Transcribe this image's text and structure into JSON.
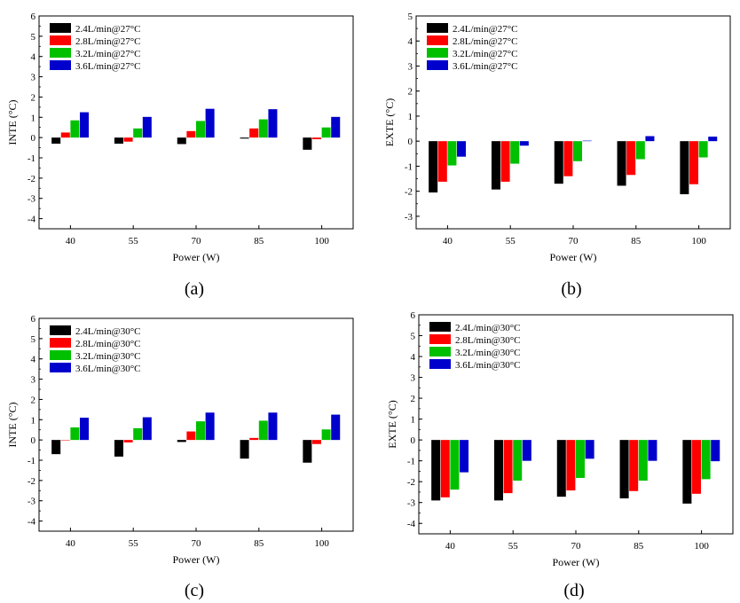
{
  "colors": [
    "#000000",
    "#ff0000",
    "#00c000",
    "#0000cc"
  ],
  "chart_data": [
    {
      "type": "bar",
      "caption": "(a)",
      "categories": [
        "40",
        "55",
        "70",
        "85",
        "100"
      ],
      "xlabel": "Power (W)",
      "ylabel": "INTE (°C)",
      "ylim": [
        -4.5,
        6
      ],
      "yticks": [
        -4,
        -3,
        -2,
        -1,
        0,
        1,
        2,
        3,
        4,
        5,
        6
      ],
      "legend_position": "top-left",
      "grid": false,
      "series": [
        {
          "name": "2.4L/min@27°C",
          "values": [
            -0.3,
            -0.3,
            -0.32,
            -0.05,
            -0.6
          ]
        },
        {
          "name": "2.8L/min@27°C",
          "values": [
            0.25,
            -0.2,
            0.32,
            0.45,
            -0.08
          ]
        },
        {
          "name": "3.2L/min@27°C",
          "values": [
            0.85,
            0.45,
            0.82,
            0.9,
            0.5
          ]
        },
        {
          "name": "3.6L/min@27°C",
          "values": [
            1.25,
            1.02,
            1.42,
            1.4,
            1.02
          ]
        }
      ]
    },
    {
      "type": "bar",
      "caption": "(b)",
      "categories": [
        "40",
        "55",
        "70",
        "85",
        "100"
      ],
      "xlabel": "Power (W)",
      "ylabel": "EXTE (°C)",
      "ylim": [
        -3.5,
        5
      ],
      "yticks": [
        -3,
        -2,
        -1,
        0,
        1,
        2,
        3,
        4,
        5
      ],
      "legend_position": "top-left",
      "grid": false,
      "series": [
        {
          "name": "2.4L/min@27°C",
          "values": [
            -2.05,
            -1.93,
            -1.7,
            -1.78,
            -2.12
          ]
        },
        {
          "name": "2.8L/min@27°C",
          "values": [
            -1.62,
            -1.62,
            -1.4,
            -1.35,
            -1.72
          ]
        },
        {
          "name": "3.2L/min@27°C",
          "values": [
            -0.97,
            -0.9,
            -0.8,
            -0.72,
            -0.65
          ]
        },
        {
          "name": "3.6L/min@27°C",
          "values": [
            -0.62,
            -0.18,
            0.02,
            0.2,
            0.18
          ]
        }
      ]
    },
    {
      "type": "bar",
      "caption": "(c)",
      "categories": [
        "40",
        "55",
        "70",
        "85",
        "100"
      ],
      "xlabel": "Power (W)",
      "ylabel": "INTE (°C)",
      "ylim": [
        -4.5,
        6
      ],
      "yticks": [
        -4,
        -3,
        -2,
        -1,
        0,
        1,
        2,
        3,
        4,
        5,
        6
      ],
      "legend_position": "top-left",
      "grid": false,
      "series": [
        {
          "name": "2.4L/min@30°C",
          "values": [
            -0.7,
            -0.82,
            -0.1,
            -0.92,
            -1.12
          ]
        },
        {
          "name": "2.8L/min@30°C",
          "values": [
            -0.02,
            -0.12,
            0.42,
            0.1,
            -0.2
          ]
        },
        {
          "name": "3.2L/min@30°C",
          "values": [
            0.62,
            0.58,
            0.92,
            0.95,
            0.52
          ]
        },
        {
          "name": "3.6L/min@30°C",
          "values": [
            1.1,
            1.12,
            1.35,
            1.35,
            1.25
          ]
        }
      ]
    },
    {
      "type": "bar",
      "caption": "(d)",
      "categories": [
        "40",
        "55",
        "70",
        "85",
        "100"
      ],
      "xlabel": "Power (W)",
      "ylabel": "EXTE (°C)",
      "ylim": [
        -4.5,
        6
      ],
      "yticks": [
        -4,
        -3,
        -2,
        -1,
        0,
        1,
        2,
        3,
        4,
        5,
        6
      ],
      "legend_position": "top-left",
      "grid": false,
      "series": [
        {
          "name": "2.4L/min@30°C",
          "values": [
            -2.9,
            -2.9,
            -2.72,
            -2.8,
            -3.05
          ]
        },
        {
          "name": "2.8L/min@30°C",
          "values": [
            -2.75,
            -2.55,
            -2.42,
            -2.45,
            -2.58
          ]
        },
        {
          "name": "3.2L/min@30°C",
          "values": [
            -2.38,
            -1.95,
            -1.82,
            -1.95,
            -1.88
          ]
        },
        {
          "name": "3.6L/min@30°C",
          "values": [
            -1.55,
            -1.0,
            -0.9,
            -1.0,
            -1.02
          ]
        }
      ]
    }
  ]
}
